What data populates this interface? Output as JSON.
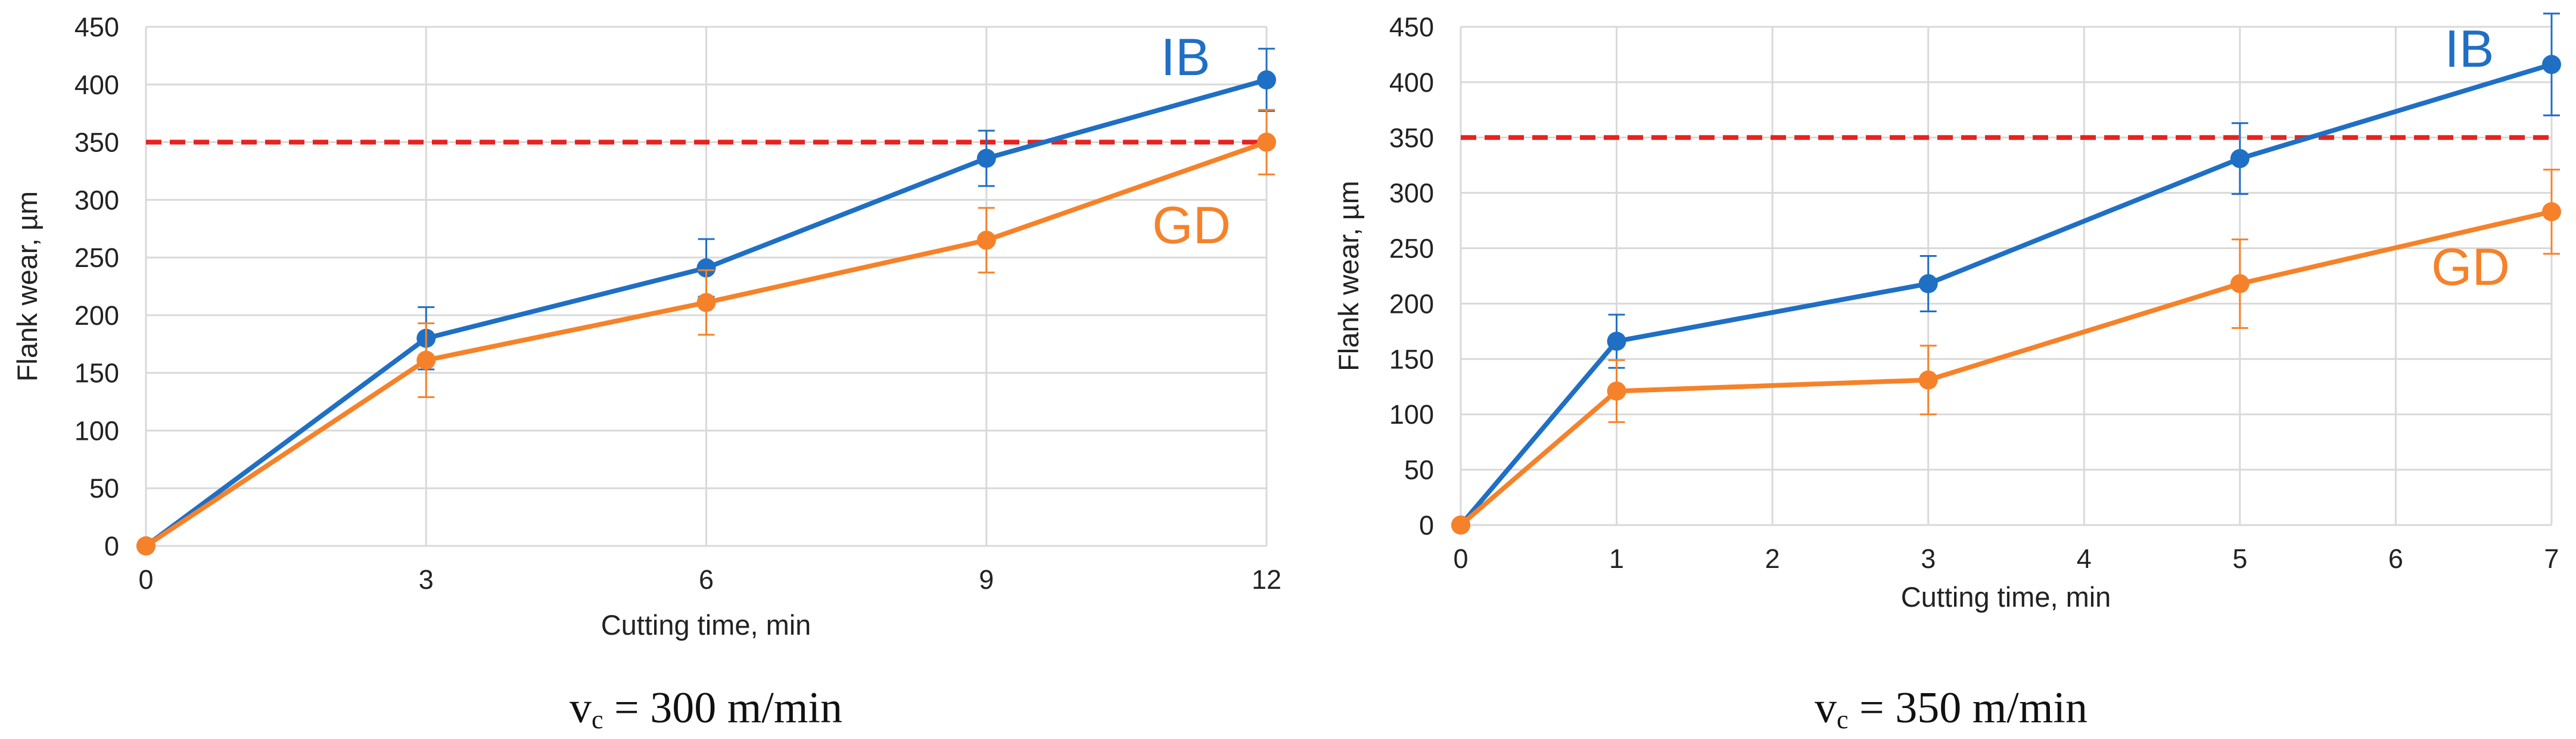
{
  "colors": {
    "ib": "#1f6fc4",
    "gd": "#f5822a",
    "threshold": "#e8221f",
    "grid": "#d9d9d9"
  },
  "chart_data": [
    {
      "type": "line",
      "caption": {
        "var": "v",
        "sub": "c",
        "rest": " = 300 m/min"
      },
      "xlabel": "Cutting time, min",
      "ylabel": "Flank wear, µm",
      "xlim": [
        0,
        12
      ],
      "ylim": [
        0,
        450
      ],
      "xticks": [
        0,
        3,
        6,
        9,
        12
      ],
      "yticks": [
        0,
        50,
        100,
        150,
        200,
        250,
        300,
        350,
        400,
        450
      ],
      "grid": true,
      "threshold": 350,
      "series": [
        {
          "name": "IB",
          "x": [
            0,
            3,
            6,
            9,
            12
          ],
          "y": [
            0,
            180,
            241,
            336,
            404
          ],
          "err": [
            0,
            27,
            25,
            24,
            27
          ]
        },
        {
          "name": "GD",
          "x": [
            0,
            3,
            6,
            9,
            12
          ],
          "y": [
            0,
            161,
            211,
            265,
            350
          ],
          "err": [
            0,
            32,
            28,
            28,
            28
          ]
        }
      ]
    },
    {
      "type": "line",
      "caption": {
        "var": "v",
        "sub": "c",
        "rest": " = 350 m/min"
      },
      "xlabel": "Cutting time, min",
      "ylabel": "Flank wear, µm",
      "xlim": [
        0,
        7
      ],
      "ylim": [
        0,
        450
      ],
      "xticks": [
        0,
        1,
        2,
        3,
        4,
        5,
        6,
        7
      ],
      "yticks": [
        0,
        50,
        100,
        150,
        200,
        250,
        300,
        350,
        400,
        450
      ],
      "grid": true,
      "threshold": 350,
      "series": [
        {
          "name": "IB",
          "x": [
            0,
            1,
            3,
            5,
            7
          ],
          "y": [
            0,
            166,
            218,
            331,
            416
          ],
          "err": [
            0,
            24,
            25,
            32,
            46
          ]
        },
        {
          "name": "GD",
          "x": [
            0,
            1,
            3,
            5,
            7
          ],
          "y": [
            0,
            121,
            131,
            218,
            283
          ],
          "err": [
            0,
            28,
            31,
            40,
            38
          ]
        }
      ]
    }
  ]
}
